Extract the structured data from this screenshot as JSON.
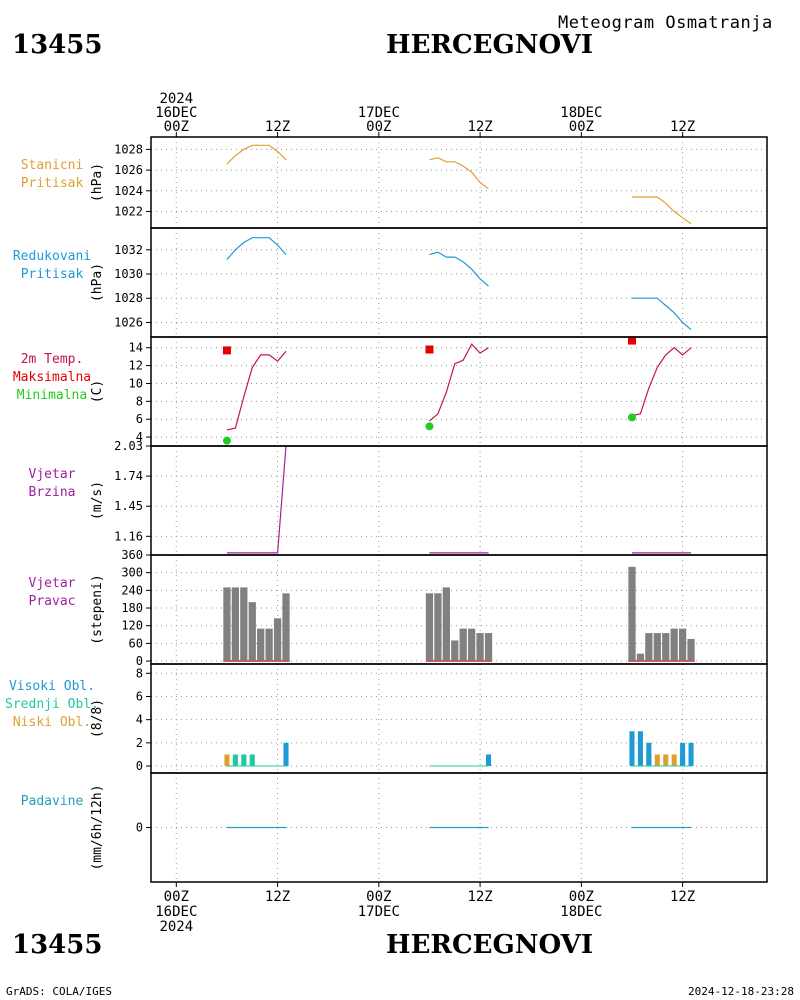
{
  "header": {
    "station_id": "13455",
    "station_name": "HERCEGNOVI",
    "meteogram_label": "Meteogram Osmatranja"
  },
  "footer": {
    "station_id": "13455",
    "station_name": "HERCEGNOVI",
    "credit": "GrADS: COLA/IGES",
    "timestamp": "2024-12-18-23:28"
  },
  "time_axis": {
    "top_ticks": [
      {
        "x_hours": 0,
        "lines": [
          "2024",
          "16DEC",
          "00Z"
        ]
      },
      {
        "x_hours": 12,
        "lines": [
          "12Z"
        ]
      },
      {
        "x_hours": 24,
        "lines": [
          "17DEC",
          "00Z"
        ]
      },
      {
        "x_hours": 36,
        "lines": [
          "12Z"
        ]
      },
      {
        "x_hours": 48,
        "lines": [
          "18DEC",
          "00Z"
        ]
      },
      {
        "x_hours": 60,
        "lines": [
          "12Z"
        ]
      }
    ],
    "bottom_ticks": [
      {
        "x_hours": 0,
        "lines": [
          "00Z",
          "16DEC",
          "2024"
        ]
      },
      {
        "x_hours": 12,
        "lines": [
          "12Z"
        ]
      },
      {
        "x_hours": 24,
        "lines": [
          "00Z",
          "17DEC"
        ]
      },
      {
        "x_hours": 36,
        "lines": [
          "12Z"
        ]
      },
      {
        "x_hours": 48,
        "lines": [
          "00Z",
          "18DEC"
        ]
      },
      {
        "x_hours": 60,
        "lines": [
          "12Z"
        ]
      }
    ],
    "xlim_hours": [
      -3,
      70
    ]
  },
  "colors": {
    "stanicni": "#e0a030",
    "redukovani": "#1e9ad6",
    "temp": "#c0145a",
    "max": "#e60000",
    "min": "#22cc22",
    "wind": "#a020a0",
    "dir_bar": "#808080",
    "dir_base": "#c06060",
    "visoki": "#1e9ad6",
    "srednji": "#20c8a0",
    "niski": "#e0a030",
    "precip": "#20a0c0",
    "grid": "#999999"
  },
  "chart_data": [
    {
      "id": "stanicni",
      "type": "line",
      "labels": [
        {
          "text": "Stanicni",
          "color": "#e0a030"
        },
        {
          "text": "Pritisak",
          "color": "#e0a030"
        }
      ],
      "ylabel": "(hPa)",
      "ylim": [
        1020.4,
        1029.2
      ],
      "yticks": [
        1022,
        1024,
        1026,
        1028
      ],
      "segments": [
        {
          "x": [
            6,
            7,
            8,
            9,
            10,
            11,
            12,
            13
          ],
          "y": [
            1026.6,
            1027.4,
            1028.0,
            1028.4,
            1028.4,
            1028.4,
            1027.8,
            1027.0
          ]
        },
        {
          "x": [
            30,
            31,
            32,
            33,
            34,
            35,
            36,
            37
          ],
          "y": [
            1027.0,
            1027.2,
            1026.8,
            1026.8,
            1026.4,
            1025.8,
            1024.8,
            1024.2
          ]
        },
        {
          "x": [
            54,
            55,
            56,
            57,
            58,
            59,
            60,
            61
          ],
          "y": [
            1023.4,
            1023.4,
            1023.4,
            1023.4,
            1022.8,
            1022.0,
            1021.4,
            1020.8
          ]
        }
      ]
    },
    {
      "id": "redukovani",
      "type": "line",
      "labels": [
        {
          "text": "Redukovani",
          "color": "#1e9ad6"
        },
        {
          "text": "Pritisak",
          "color": "#1e9ad6"
        }
      ],
      "ylabel": "(hPa)",
      "ylim": [
        1024.8,
        1033.8
      ],
      "yticks": [
        1026,
        1028,
        1030,
        1032
      ],
      "segments": [
        {
          "x": [
            6,
            7,
            8,
            9,
            10,
            11,
            12,
            13
          ],
          "y": [
            1031.2,
            1032.0,
            1032.6,
            1033.0,
            1033.0,
            1033.0,
            1032.4,
            1031.6
          ]
        },
        {
          "x": [
            30,
            31,
            32,
            33,
            34,
            35,
            36,
            37
          ],
          "y": [
            1031.6,
            1031.8,
            1031.4,
            1031.4,
            1031.0,
            1030.4,
            1029.6,
            1029.0
          ]
        },
        {
          "x": [
            54,
            55,
            56,
            57,
            58,
            59,
            60,
            61
          ],
          "y": [
            1028.0,
            1028.0,
            1028.0,
            1028.0,
            1027.4,
            1026.8,
            1026.0,
            1025.4
          ]
        }
      ]
    },
    {
      "id": "temp",
      "type": "line",
      "labels": [
        {
          "text": "2m Temp.",
          "color": "#c0145a"
        },
        {
          "text": "Maksimalna",
          "color": "#e60000"
        },
        {
          "text": "Minimalna",
          "color": "#22cc22"
        }
      ],
      "ylabel": "(C)",
      "ylim": [
        3.0,
        15.2
      ],
      "yticks": [
        4,
        6,
        8,
        10,
        12,
        14
      ],
      "segments": [
        {
          "x": [
            6,
            7,
            8,
            9,
            10,
            11,
            12,
            13
          ],
          "y": [
            4.8,
            5.0,
            8.5,
            11.8,
            13.2,
            13.2,
            12.5,
            13.6
          ]
        },
        {
          "x": [
            30,
            31,
            32,
            33,
            34,
            35,
            36,
            37
          ],
          "y": [
            5.8,
            6.6,
            9.0,
            12.2,
            12.6,
            14.4,
            13.4,
            14.0
          ]
        },
        {
          "x": [
            54,
            55,
            56,
            57,
            58,
            59,
            60,
            61
          ],
          "y": [
            6.4,
            6.6,
            9.5,
            11.8,
            13.2,
            14.0,
            13.2,
            14.0
          ]
        }
      ],
      "max_points": [
        {
          "x": 6,
          "y": 13.7
        },
        {
          "x": 30,
          "y": 13.8
        },
        {
          "x": 54,
          "y": 14.8
        }
      ],
      "min_points": [
        {
          "x": 6,
          "y": 3.6
        },
        {
          "x": 30,
          "y": 5.2
        },
        {
          "x": 54,
          "y": 6.2
        }
      ]
    },
    {
      "id": "wind_speed",
      "type": "line",
      "labels": [
        {
          "text": "Vjetar",
          "color": "#a020a0"
        },
        {
          "text": "Brzina",
          "color": "#a020a0"
        }
      ],
      "ylabel": "(m/s)",
      "ylim": [
        0.98,
        2.03
      ],
      "yticks": [
        1.16,
        1.45,
        1.74,
        2.03
      ],
      "segments": [
        {
          "x": [
            6,
            7,
            8,
            9,
            10,
            11,
            12,
            13
          ],
          "y": [
            1.0,
            1.0,
            1.0,
            1.0,
            1.0,
            1.0,
            1.0,
            2.03
          ]
        },
        {
          "x": [
            30,
            31,
            32,
            33,
            34,
            35,
            36,
            37
          ],
          "y": [
            1.0,
            1.0,
            1.0,
            1.0,
            1.0,
            1.0,
            1.0,
            1.0
          ]
        },
        {
          "x": [
            54,
            55,
            56,
            57,
            58,
            59,
            60,
            61
          ],
          "y": [
            1.0,
            1.0,
            1.0,
            1.0,
            1.0,
            1.0,
            1.0,
            1.0
          ]
        }
      ]
    },
    {
      "id": "wind_dir",
      "type": "bar",
      "labels": [
        {
          "text": "Vjetar",
          "color": "#a020a0"
        },
        {
          "text": "Pravac",
          "color": "#a020a0"
        }
      ],
      "ylabel": "(stepeni)",
      "ylim": [
        -10,
        360
      ],
      "yticks": [
        0,
        60,
        120,
        180,
        240,
        300,
        360
      ],
      "x": [
        6,
        7,
        8,
        9,
        10,
        11,
        12,
        13,
        30,
        31,
        32,
        33,
        34,
        35,
        36,
        37,
        54,
        55,
        56,
        57,
        58,
        59,
        60,
        61
      ],
      "values": [
        250,
        250,
        250,
        200,
        110,
        110,
        145,
        230,
        230,
        230,
        250,
        70,
        110,
        110,
        95,
        95,
        320,
        25,
        95,
        95,
        95,
        110,
        110,
        75
      ]
    },
    {
      "id": "clouds",
      "type": "bar",
      "labels": [
        {
          "text": "Visoki Obl.",
          "color": "#1e9ad6"
        },
        {
          "text": "Srednji Obl.",
          "color": "#20c8a0"
        },
        {
          "text": "Niski Obl.",
          "color": "#e0a030"
        }
      ],
      "ylabel": "(8/8)",
      "ylim": [
        -0.6,
        8.8
      ],
      "yticks": [
        0,
        2,
        4,
        6,
        8
      ],
      "series": [
        {
          "name": "Niski Obl.",
          "x": [
            6,
            55,
            57,
            58,
            59
          ],
          "values": [
            1,
            1,
            1,
            1,
            1
          ]
        },
        {
          "name": "Srednji Obl.",
          "x": [
            7,
            8,
            9,
            56,
            60
          ],
          "values": [
            1,
            1,
            1,
            1,
            1
          ]
        },
        {
          "name": "Visoki Obl.",
          "x": [
            13,
            37,
            54,
            55,
            56,
            60,
            61
          ],
          "values": [
            2,
            1,
            3,
            3,
            2,
            2,
            2
          ]
        }
      ]
    },
    {
      "id": "precip",
      "type": "line",
      "labels": [
        {
          "text": "Padavine",
          "color": "#20a0c0"
        }
      ],
      "ylabel": "(mm/6h/12h)",
      "ylim": [
        -1,
        1
      ],
      "yticks": [
        0
      ],
      "segments": [
        {
          "x": [
            6,
            13
          ],
          "y": [
            0,
            0
          ]
        },
        {
          "x": [
            30,
            37
          ],
          "y": [
            0,
            0
          ]
        },
        {
          "x": [
            54,
            61
          ],
          "y": [
            0,
            0
          ]
        }
      ]
    }
  ]
}
